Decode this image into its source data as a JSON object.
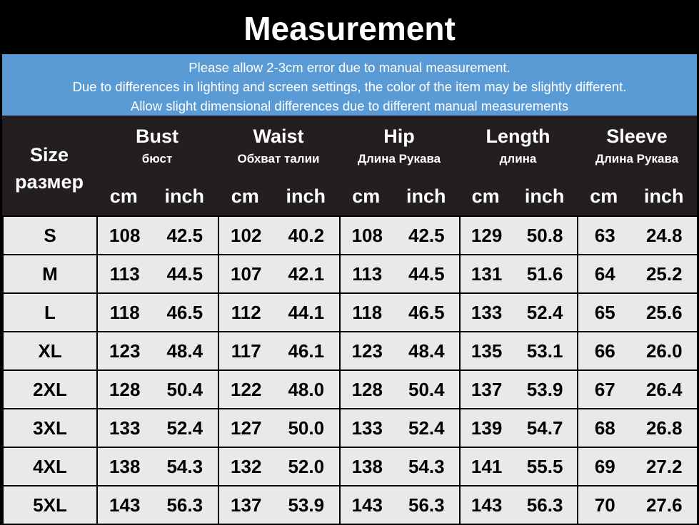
{
  "title": "Measurement",
  "notes": [
    "Please allow 2-3cm error due to manual measurement.",
    "Due to differences in lighting and screen settings, the color of the item may be slightly different.",
    "Allow slight dimensional differences due to different manual measurements"
  ],
  "header": {
    "size": "Size",
    "size_ru": "размер",
    "columns": [
      {
        "name": "Bust",
        "ru": "бюст"
      },
      {
        "name": "Waist",
        "ru": "Обхват талии"
      },
      {
        "name": "Hip",
        "ru": "Длина Рукава"
      },
      {
        "name": "Length",
        "ru": "длина"
      },
      {
        "name": "Sleeve",
        "ru": "Длина Рукава"
      }
    ],
    "cm": "cm",
    "inch": "inch"
  },
  "rows": [
    [
      "S",
      "108",
      "42.5",
      "102",
      "40.2",
      "108",
      "42.5",
      "129",
      "50.8",
      "63",
      "24.8"
    ],
    [
      "M",
      "113",
      "44.5",
      "107",
      "42.1",
      "113",
      "44.5",
      "131",
      "51.6",
      "64",
      "25.2"
    ],
    [
      "L",
      "118",
      "46.5",
      "112",
      "44.1",
      "118",
      "46.5",
      "133",
      "52.4",
      "65",
      "25.6"
    ],
    [
      "XL",
      "123",
      "48.4",
      "117",
      "46.1",
      "123",
      "48.4",
      "135",
      "53.1",
      "66",
      "26.0"
    ],
    [
      "2XL",
      "128",
      "50.4",
      "122",
      "48.0",
      "128",
      "50.4",
      "137",
      "53.9",
      "67",
      "26.4"
    ],
    [
      "3XL",
      "133",
      "52.4",
      "127",
      "50.0",
      "133",
      "52.4",
      "139",
      "54.7",
      "68",
      "26.8"
    ],
    [
      "4XL",
      "138",
      "54.3",
      "132",
      "52.0",
      "138",
      "54.3",
      "141",
      "55.5",
      "69",
      "27.2"
    ],
    [
      "5XL",
      "143",
      "56.3",
      "137",
      "53.9",
      "143",
      "56.3",
      "143",
      "56.3",
      "70",
      "27.6"
    ]
  ]
}
